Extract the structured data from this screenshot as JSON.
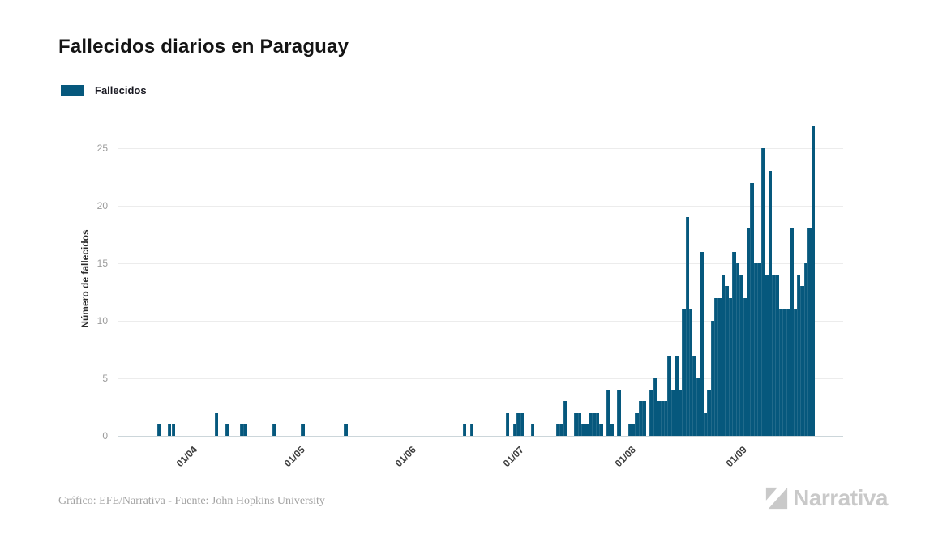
{
  "title": "Fallecidos diarios en Paraguay",
  "legend": {
    "label": "Fallecidos",
    "color": "#06587d"
  },
  "footer": {
    "credit": "Gráfico: EFE/Narrativa - Fuente: John Hopkins University"
  },
  "logo": {
    "text": "Narrativa",
    "color": "#c9c9c9",
    "icon": "narrativa-n-icon"
  },
  "chart_data": {
    "type": "bar",
    "title": "Fallecidos diarios en Paraguay",
    "xlabel": "",
    "ylabel": "Número de fallecidos",
    "ylim": [
      0,
      27
    ],
    "yticks": [
      0,
      5,
      10,
      15,
      20,
      25
    ],
    "grid": "horizontal",
    "legend_position": "top-left",
    "bar_color": "#06587d",
    "xtick_labels": [
      "01/04",
      "01/05",
      "01/06",
      "01/07",
      "01/08",
      "01/09"
    ],
    "xtick_day_index": [
      20,
      50,
      81,
      111,
      142,
      173
    ],
    "series": [
      {
        "name": "Fallecidos",
        "values": [
          0,
          0,
          0,
          0,
          0,
          0,
          0,
          0,
          0,
          0,
          0,
          1,
          0,
          0,
          1,
          1,
          0,
          0,
          0,
          0,
          0,
          0,
          0,
          0,
          0,
          0,
          0,
          2,
          0,
          0,
          1,
          0,
          0,
          0,
          1,
          1,
          0,
          0,
          0,
          0,
          0,
          0,
          0,
          1,
          0,
          0,
          0,
          0,
          0,
          0,
          0,
          1,
          0,
          0,
          0,
          0,
          0,
          0,
          0,
          0,
          0,
          0,
          0,
          1,
          0,
          0,
          0,
          0,
          0,
          0,
          0,
          0,
          0,
          0,
          0,
          0,
          0,
          0,
          0,
          0,
          0,
          0,
          0,
          0,
          0,
          0,
          0,
          0,
          0,
          0,
          0,
          0,
          0,
          0,
          0,
          0,
          1,
          0,
          1,
          0,
          0,
          0,
          0,
          0,
          0,
          0,
          0,
          0,
          2,
          0,
          1,
          2,
          2,
          0,
          0,
          1,
          0,
          0,
          0,
          0,
          0,
          0,
          1,
          1,
          3,
          0,
          0,
          2,
          2,
          1,
          1,
          2,
          2,
          2,
          1,
          0,
          4,
          1,
          0,
          4,
          0,
          0,
          1,
          1,
          2,
          3,
          3,
          0,
          4,
          5,
          3,
          3,
          3,
          7,
          4,
          7,
          4,
          11,
          19,
          11,
          7,
          5,
          16,
          2,
          4,
          10,
          12,
          12,
          14,
          13,
          12,
          16,
          15,
          14,
          12,
          18,
          22,
          15,
          15,
          25,
          14,
          23,
          14,
          14,
          11,
          11,
          11,
          18,
          11,
          14,
          13,
          15,
          18,
          27
        ]
      }
    ]
  }
}
